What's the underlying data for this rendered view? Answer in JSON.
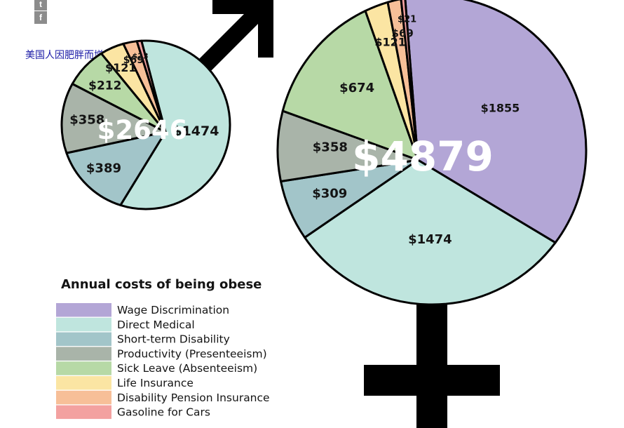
{
  "social": {
    "twitter_icon": "twitter-icon",
    "twitter_glyph": "t",
    "facebook_icon": "facebook-icon",
    "facebook_glyph": "f"
  },
  "page_title": "美国人因肥胖而增加成本",
  "chart_data": {
    "type": "pie",
    "title": "Annual costs of being obese",
    "categories": [
      "Wage Discrimination",
      "Direct Medical",
      "Short-term Disability",
      "Productivity (Presenteeism)",
      "Sick Leave (Absenteeism)",
      "Life Insurance",
      "Disability Pension Insurance",
      "Gasoline for Cars"
    ],
    "colors": [
      "#b3a6d6",
      "#bfe5de",
      "#a2c5c9",
      "#a9b4a9",
      "#b7d9a6",
      "#fbe5a3",
      "#f7bf98",
      "#f3a1a0"
    ],
    "series": [
      {
        "name": "Male",
        "symbol": "male-symbol",
        "total_label": "$2646",
        "values": [
          0,
          1474,
          389,
          358,
          212,
          121,
          69,
          23
        ],
        "labels": [
          "",
          "$1474",
          "$389",
          "$358",
          "$212",
          "$121",
          "$69",
          "$23"
        ]
      },
      {
        "name": "Female",
        "symbol": "female-symbol",
        "total_label": "$4879",
        "values": [
          1855,
          1474,
          309,
          358,
          674,
          121,
          69,
          21
        ],
        "labels": [
          "$1855",
          "$1474",
          "$309",
          "$358",
          "$674",
          "$121",
          "$69",
          "$21"
        ]
      }
    ]
  }
}
